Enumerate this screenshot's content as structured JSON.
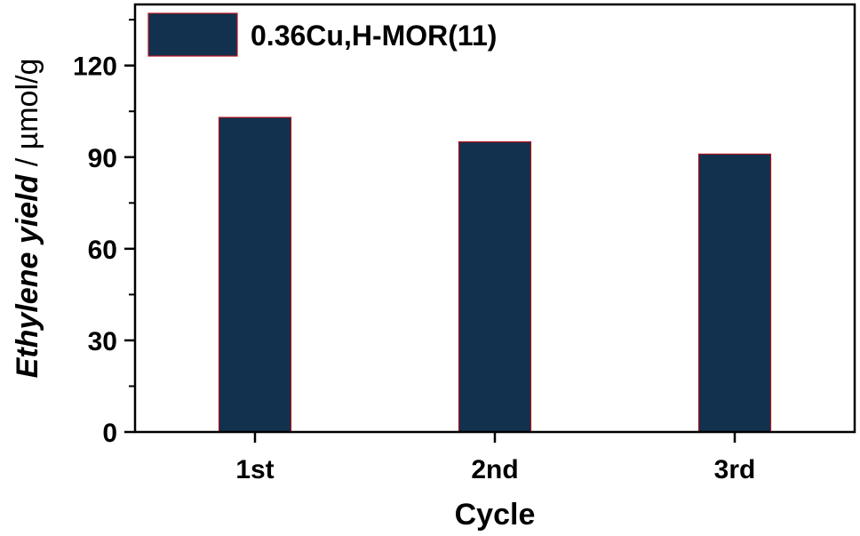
{
  "chart_data": {
    "type": "bar",
    "categories": [
      "1st",
      "2nd",
      "3rd"
    ],
    "series": [
      {
        "name": "0.36Cu,H-MOR(11)",
        "values": [
          103,
          95,
          91
        ]
      }
    ],
    "xlabel": "Cycle",
    "ylabel_italic": "Ethylene yield",
    "ylabel_units": " / µmol/g",
    "ylim": [
      0,
      140
    ],
    "yticks": [
      0,
      30,
      60,
      90,
      120
    ],
    "ytick_labels": [
      "0",
      "30",
      "60",
      "90",
      "120"
    ],
    "grid": false,
    "legend_position": "top-left",
    "bar_color": "#11314f",
    "bar_edge_color": "#b0141e"
  }
}
